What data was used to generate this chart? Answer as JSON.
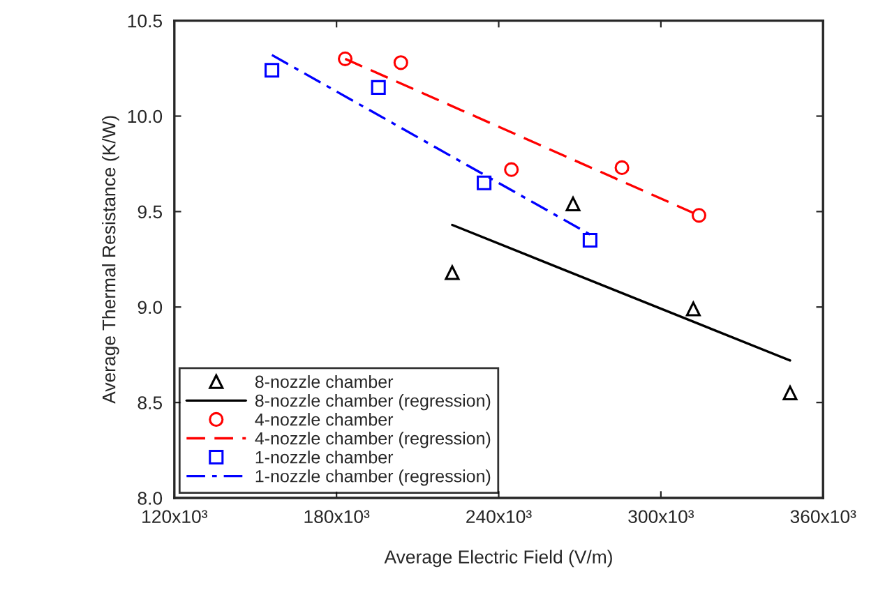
{
  "chart_data": {
    "type": "scatter",
    "xlabel": "Average Electric Field (V/m)",
    "ylabel": "Average Thermal Resistance (K/W)",
    "xlim": [
      120000,
      360000
    ],
    "ylim": [
      8.0,
      10.5
    ],
    "xticks": [
      {
        "value": 120000,
        "label": "120x10³"
      },
      {
        "value": 180000,
        "label": "180x10³"
      },
      {
        "value": 240000,
        "label": "240x10³"
      },
      {
        "value": 300000,
        "label": "300x10³"
      },
      {
        "value": 360000,
        "label": "360x10³"
      }
    ],
    "yticks": [
      {
        "value": 8.0,
        "label": "8.0"
      },
      {
        "value": 8.5,
        "label": "8.5"
      },
      {
        "value": 9.0,
        "label": "9.0"
      },
      {
        "value": 9.5,
        "label": "9.5"
      },
      {
        "value": 10.0,
        "label": "10.0"
      },
      {
        "value": 10.5,
        "label": "10.5"
      }
    ],
    "grid": false,
    "legend": "bottom left",
    "series": [
      {
        "name": "8-nozzle chamber",
        "marker": "triangle",
        "color": "#000000",
        "x": [
          222800,
          267500,
          312000,
          347800
        ],
        "values": [
          9.18,
          9.54,
          8.99,
          8.55
        ]
      },
      {
        "name": "8-nozzle chamber (regression)",
        "type": "line",
        "marker": "none",
        "line_style": "solid",
        "color": "#000000",
        "x": [
          222800,
          347800
        ],
        "values": [
          9.43,
          8.72
        ]
      },
      {
        "name": "4-nozzle chamber",
        "marker": "circle",
        "color": "#ff0000",
        "x": [
          183200,
          203800,
          244700,
          285600,
          314100
        ],
        "values": [
          10.3,
          10.28,
          9.72,
          9.73,
          9.48
        ]
      },
      {
        "name": "4-nozzle chamber (regression)",
        "type": "line",
        "marker": "none",
        "line_style": "dashed",
        "color": "#ff0000",
        "x": [
          183200,
          314100
        ],
        "values": [
          10.3,
          9.48
        ]
      },
      {
        "name": "1-nozzle chamber",
        "marker": "square",
        "color": "#0000ff",
        "x": [
          156100,
          195500,
          234600,
          273800
        ],
        "values": [
          10.24,
          10.15,
          9.65,
          9.35
        ]
      },
      {
        "name": "1-nozzle chamber (regression)",
        "type": "line",
        "marker": "none",
        "line_style": "dashdot",
        "color": "#0000ff",
        "x": [
          156100,
          273800
        ],
        "values": [
          10.32,
          9.38
        ]
      }
    ]
  }
}
